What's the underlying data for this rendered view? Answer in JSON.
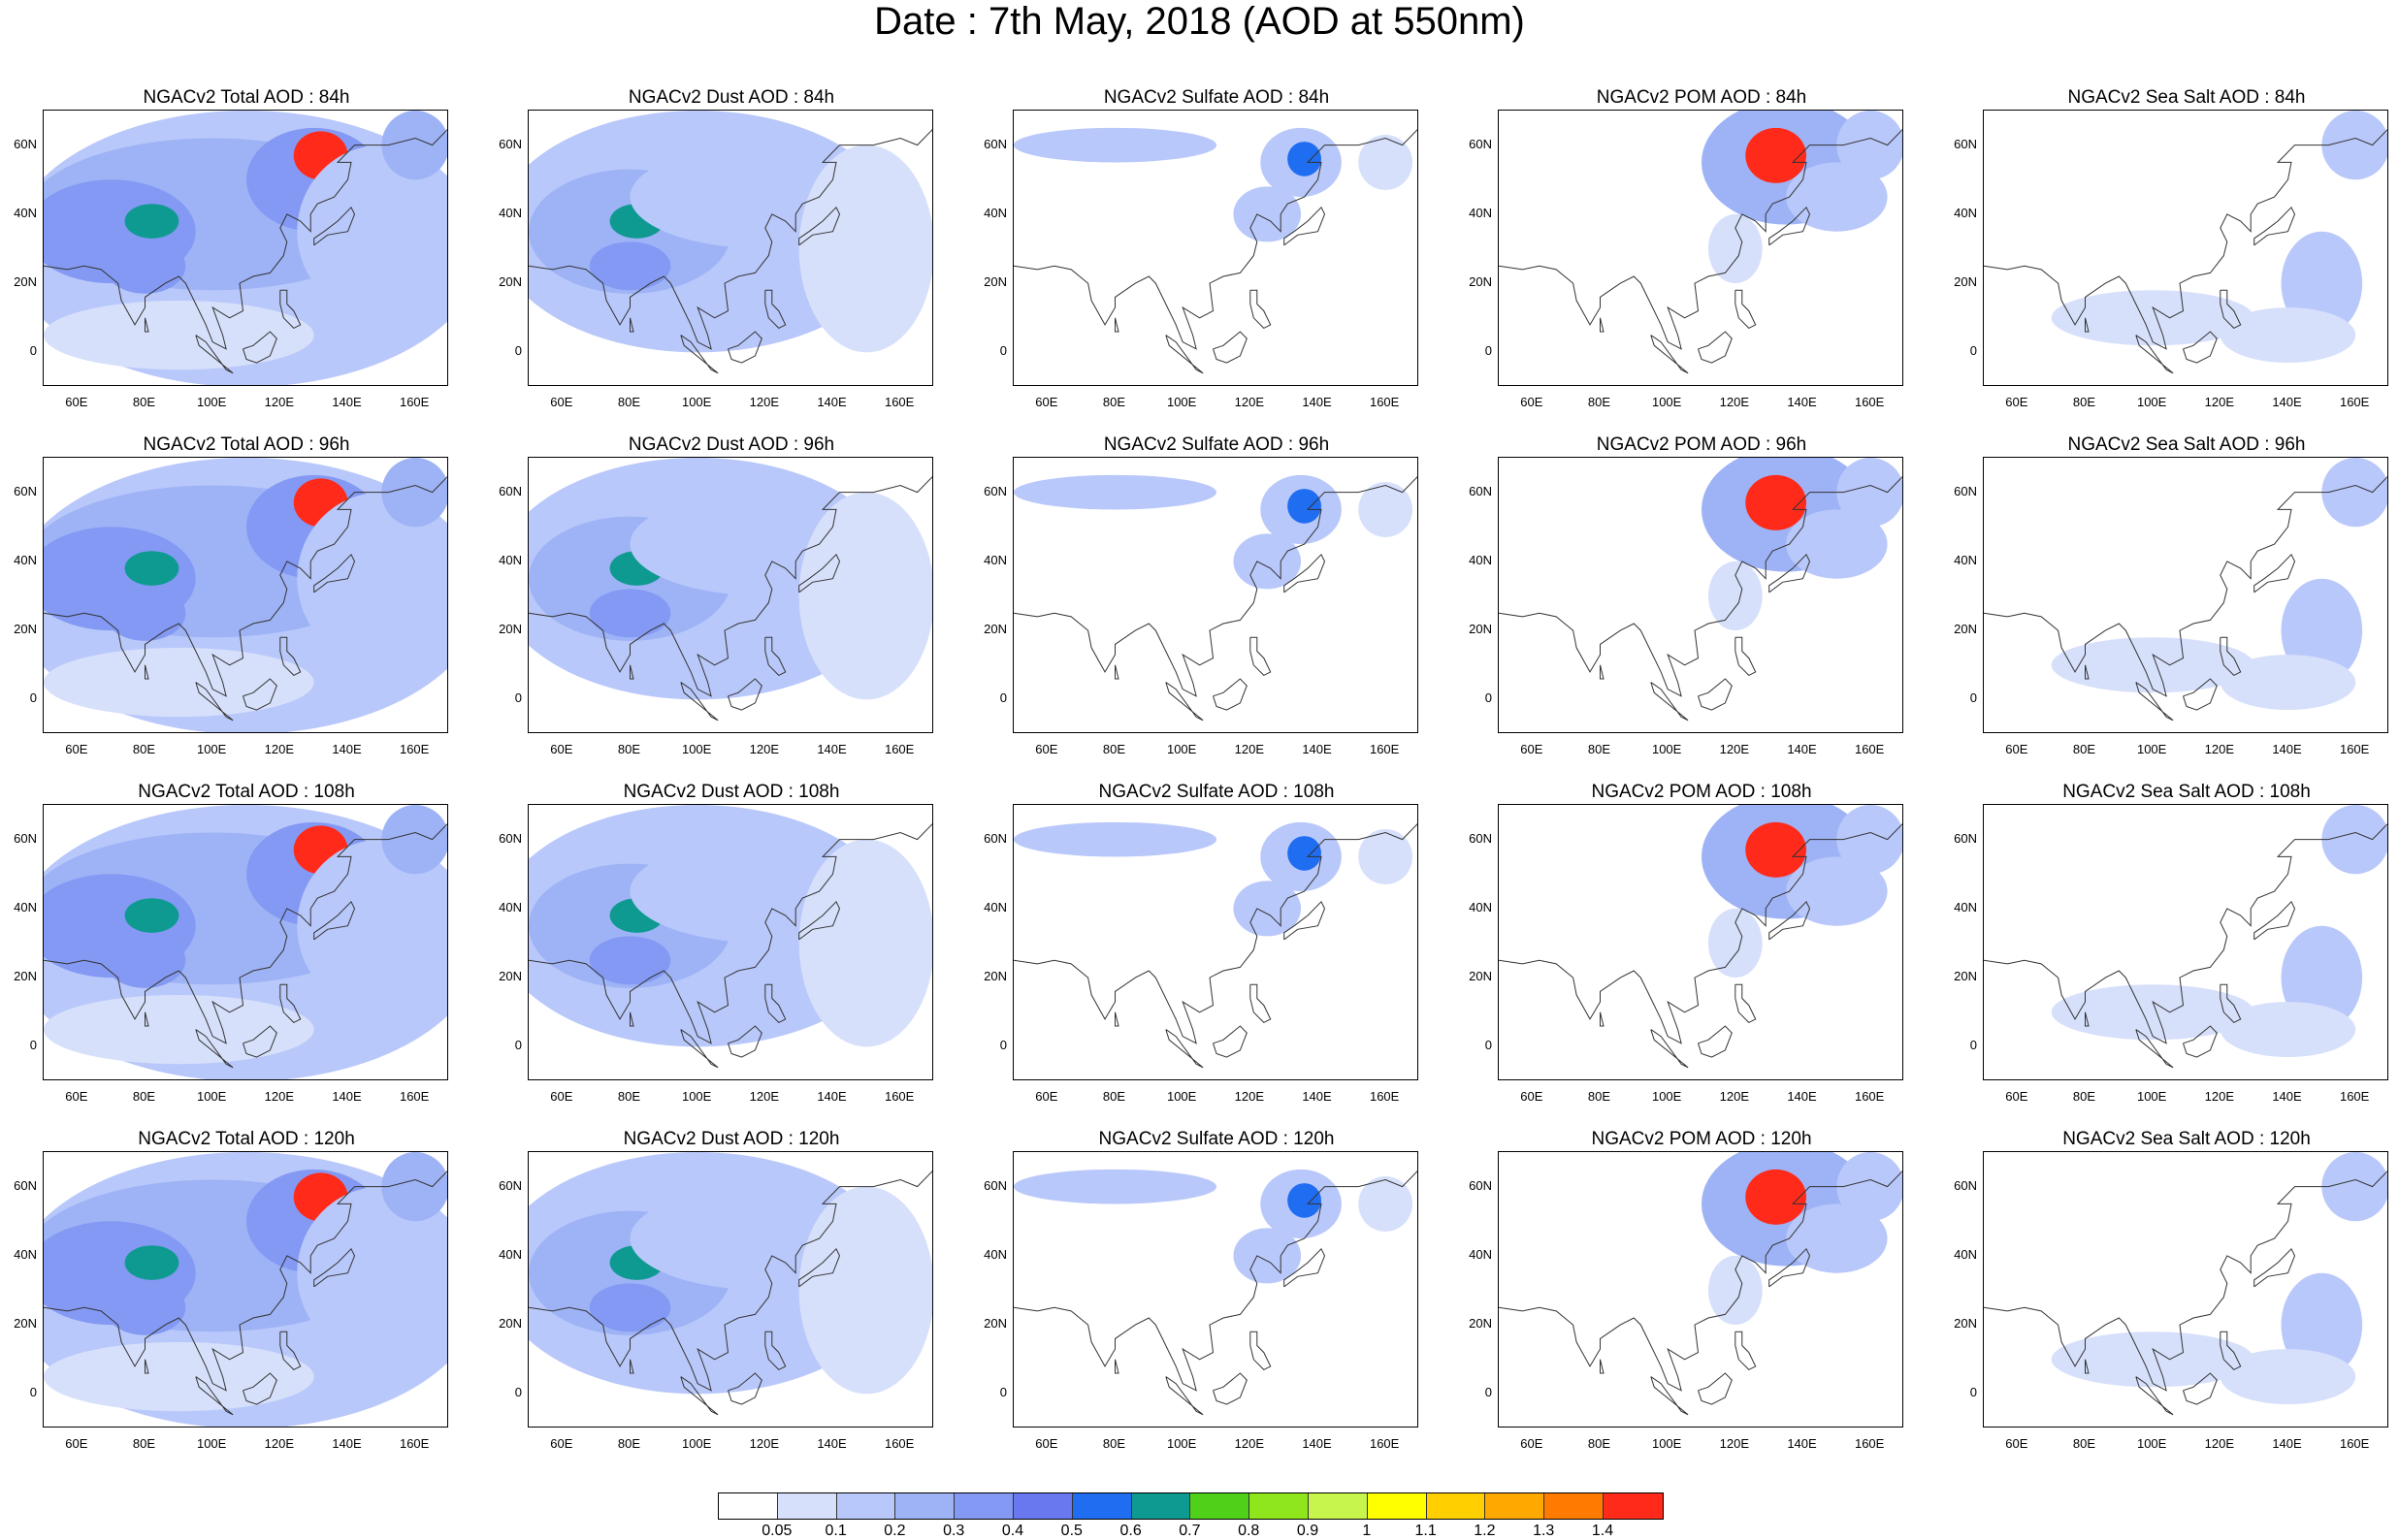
{
  "title": "Date : 7th May, 2018 (AOD at 550nm)",
  "lat_ticks": [
    "60N",
    "40N",
    "20N",
    "0"
  ],
  "lon_ticks": [
    "60E",
    "80E",
    "100E",
    "120E",
    "140E",
    "160E"
  ],
  "panels": [
    [
      {
        "title": "NGACv2 Total AOD : 84h",
        "field": "total",
        "hour": 84
      },
      {
        "title": "NGACv2 Dust AOD : 84h",
        "field": "dust",
        "hour": 84
      },
      {
        "title": "NGACv2 Sulfate AOD : 84h",
        "field": "sulfate",
        "hour": 84
      },
      {
        "title": "NGACv2 POM AOD : 84h",
        "field": "pom",
        "hour": 84
      },
      {
        "title": "NGACv2 Sea Salt AOD : 84h",
        "field": "seasalt",
        "hour": 84
      }
    ],
    [
      {
        "title": "NGACv2 Total AOD : 96h",
        "field": "total",
        "hour": 96
      },
      {
        "title": "NGACv2 Dust AOD : 96h",
        "field": "dust",
        "hour": 96
      },
      {
        "title": "NGACv2 Sulfate AOD : 96h",
        "field": "sulfate",
        "hour": 96
      },
      {
        "title": "NGACv2 POM AOD : 96h",
        "field": "pom",
        "hour": 96
      },
      {
        "title": "NGACv2 Sea Salt AOD : 96h",
        "field": "seasalt",
        "hour": 96
      }
    ],
    [
      {
        "title": "NGACv2 Total AOD : 108h",
        "field": "total",
        "hour": 108
      },
      {
        "title": "NGACv2 Dust AOD : 108h",
        "field": "dust",
        "hour": 108
      },
      {
        "title": "NGACv2 Sulfate AOD : 108h",
        "field": "sulfate",
        "hour": 108
      },
      {
        "title": "NGACv2 POM AOD : 108h",
        "field": "pom",
        "hour": 108
      },
      {
        "title": "NGACv2 Sea Salt AOD : 108h",
        "field": "seasalt",
        "hour": 108
      }
    ],
    [
      {
        "title": "NGACv2 Total AOD : 120h",
        "field": "total",
        "hour": 120
      },
      {
        "title": "NGACv2 Dust AOD : 120h",
        "field": "dust",
        "hour": 120
      },
      {
        "title": "NGACv2 Sulfate AOD : 120h",
        "field": "sulfate",
        "hour": 120
      },
      {
        "title": "NGACv2 POM AOD : 120h",
        "field": "pom",
        "hour": 120
      },
      {
        "title": "NGACv2 Sea Salt  AOD : 120h",
        "field": "seasalt",
        "hour": 120
      }
    ]
  ],
  "colorbar": {
    "labels": [
      "0.05",
      "0.1",
      "0.2",
      "0.3",
      "0.4",
      "0.5",
      "0.6",
      "0.7",
      "0.8",
      "0.9",
      "1",
      "1.1",
      "1.2",
      "1.3",
      "1.4"
    ],
    "colors": [
      "#ffffff",
      "#d7e0fb",
      "#b9c8fa",
      "#9eb3f6",
      "#8399f3",
      "#6a78f0",
      "#1f6df0",
      "#0f9a91",
      "#4fd11a",
      "#90e61c",
      "#c8f54c",
      "#ffff00",
      "#ffcf00",
      "#ffa800",
      "#ff7a00",
      "#ff2a1a"
    ]
  }
}
